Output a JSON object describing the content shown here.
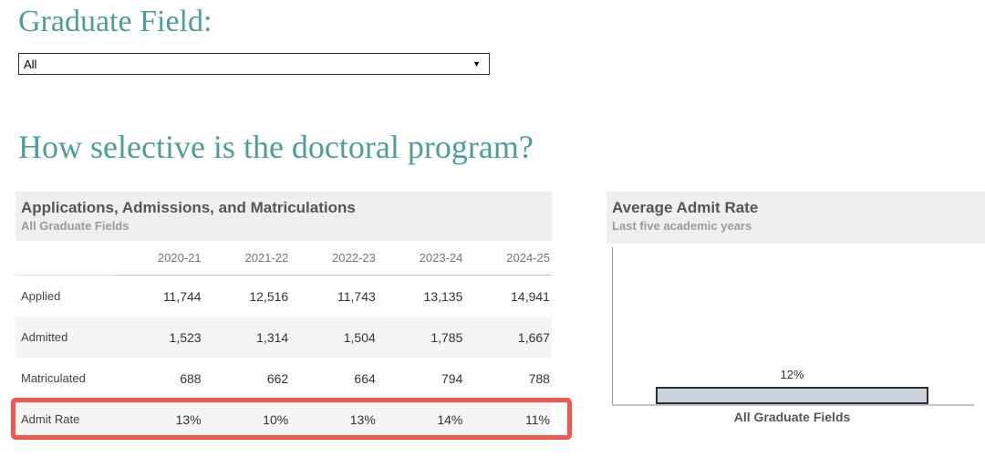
{
  "page": {
    "filter_label": "Graduate Field:",
    "heading": "How selective is the doctoral program?"
  },
  "dropdown": {
    "value": "All",
    "arrow_icon": "▼"
  },
  "table_panel": {
    "title": "Applications, Admissions, and Matriculations",
    "subtitle": "All Graduate Fields",
    "columns": [
      "2020-21",
      "2021-22",
      "2022-23",
      "2023-24",
      "2024-25"
    ],
    "rows": [
      {
        "label": "Applied",
        "values": [
          "11,744",
          "12,516",
          "11,743",
          "13,135",
          "14,941"
        ]
      },
      {
        "label": "Admitted",
        "values": [
          "1,523",
          "1,314",
          "1,504",
          "1,785",
          "1,667"
        ]
      },
      {
        "label": "Matriculated",
        "values": [
          "688",
          "662",
          "664",
          "794",
          "788"
        ]
      },
      {
        "label": "Admit Rate",
        "values": [
          "13%",
          "10%",
          "13%",
          "14%",
          "11%"
        ],
        "highlighted": true
      }
    ]
  },
  "chart_panel": {
    "title": "Average Admit Rate",
    "subtitle": "Last five academic years",
    "bar_label": "12%",
    "category_label": "All Graduate Fields"
  },
  "chart_data": {
    "type": "bar",
    "title": "Average Admit Rate",
    "subtitle": "Last five academic years",
    "categories": [
      "All Graduate Fields"
    ],
    "values": [
      12
    ],
    "value_format": "percent",
    "ylim": [
      0,
      100
    ],
    "grid": false,
    "legend": false
  },
  "colors": {
    "accent_teal": "#4d9e9b",
    "highlight_red": "#f2564d",
    "bar_fill": "#c9d2dd",
    "bar_border": "#2e2e2e",
    "panel_header_bg": "#efefef",
    "shaded_row_bg": "#f5f5f5"
  }
}
